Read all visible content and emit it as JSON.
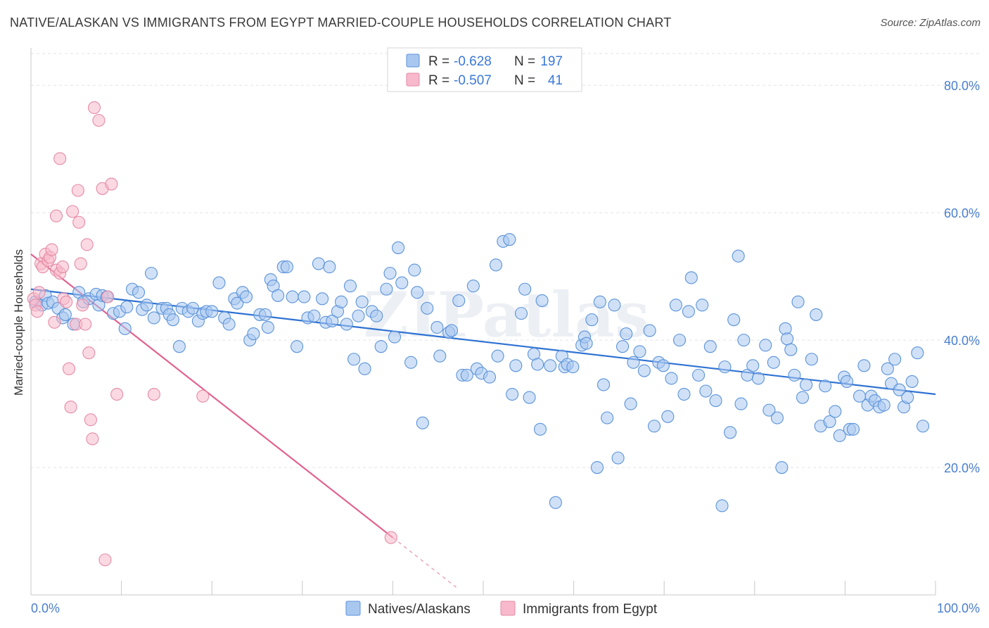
{
  "title": "NATIVE/ALASKAN VS IMMIGRANTS FROM EGYPT MARRIED-COUPLE HOUSEHOLDS CORRELATION CHART",
  "source": "Source: ZipAtlas.com",
  "watermark": "ZIPatlas",
  "legend_top": {
    "rows": [
      {
        "r_label": "R =",
        "r_value": "-0.628",
        "n_label": "N =",
        "n_value": "197",
        "color": "#a9c8f0"
      },
      {
        "r_label": "R =",
        "r_value": "-0.507",
        "n_label": "N =",
        "n_value": "41",
        "color": "#f7b9cb"
      }
    ]
  },
  "legend_bottom": [
    {
      "label": "Natives/Alaskans",
      "color": "#a9c8f0"
    },
    {
      "label": "Immigrants from Egypt",
      "color": "#f7b9cb"
    }
  ],
  "chart_data": {
    "type": "scatter",
    "title": "NATIVE/ALASKAN VS IMMIGRANTS FROM EGYPT MARRIED-COUPLE HOUSEHOLDS CORRELATION CHART",
    "xlabel": "",
    "ylabel": "Married-couple Households",
    "xlim": [
      0,
      100
    ],
    "ylim": [
      0,
      85
    ],
    "x_tick_labels": [
      "0.0%",
      "100.0%"
    ],
    "y_ticks": [
      20,
      40,
      60,
      80
    ],
    "y_tick_labels": [
      "20.0%",
      "40.0%",
      "60.0%",
      "80.0%"
    ],
    "grid": true,
    "colors": {
      "blue_fill": "#a9c8f0",
      "blue_stroke": "#5b93d9",
      "blue_line": "#2f72d2",
      "pink_fill": "#f7b9cb",
      "pink_stroke": "#e58aa6",
      "pink_line": "#e2628f"
    },
    "series": [
      {
        "name": "Natives/Alaskans",
        "trend": {
          "x0": 0,
          "y0": 48.0,
          "x1": 100,
          "y1": 31.5
        },
        "points": [
          [
            0.5,
            46.0
          ],
          [
            1.2,
            45.5
          ],
          [
            1.6,
            47.0
          ],
          [
            1.9,
            45.8
          ],
          [
            2.4,
            46.0
          ],
          [
            3.0,
            45.0
          ],
          [
            3.5,
            43.5
          ],
          [
            3.8,
            44.0
          ],
          [
            4.7,
            42.5
          ],
          [
            5.3,
            47.5
          ],
          [
            5.8,
            46.0
          ],
          [
            6.4,
            46.5
          ],
          [
            7.2,
            47.2
          ],
          [
            7.5,
            45.5
          ],
          [
            7.9,
            47.0
          ],
          [
            8.4,
            46.8
          ],
          [
            9.1,
            44.2
          ],
          [
            9.8,
            44.5
          ],
          [
            10.4,
            41.8
          ],
          [
            10.6,
            45.2
          ],
          [
            11.2,
            48.0
          ],
          [
            11.9,
            47.5
          ],
          [
            12.3,
            44.8
          ],
          [
            12.8,
            45.5
          ],
          [
            13.3,
            50.5
          ],
          [
            13.6,
            43.5
          ],
          [
            14.5,
            45.0
          ],
          [
            15.0,
            45.0
          ],
          [
            15.3,
            44.0
          ],
          [
            15.7,
            43.2
          ],
          [
            16.4,
            39.0
          ],
          [
            16.7,
            45.0
          ],
          [
            17.4,
            44.5
          ],
          [
            17.9,
            45.0
          ],
          [
            18.5,
            43.0
          ],
          [
            19.0,
            44.2
          ],
          [
            19.4,
            44.5
          ],
          [
            20.0,
            44.5
          ],
          [
            20.8,
            49.0
          ],
          [
            21.4,
            43.5
          ],
          [
            21.9,
            42.5
          ],
          [
            22.5,
            46.5
          ],
          [
            22.8,
            45.8
          ],
          [
            23.4,
            47.5
          ],
          [
            23.8,
            46.8
          ],
          [
            24.2,
            40.0
          ],
          [
            24.6,
            41.0
          ],
          [
            25.3,
            44.0
          ],
          [
            25.9,
            44.0
          ],
          [
            26.2,
            42.0
          ],
          [
            26.5,
            49.5
          ],
          [
            26.8,
            48.5
          ],
          [
            27.3,
            47.0
          ],
          [
            27.9,
            51.5
          ],
          [
            28.3,
            51.5
          ],
          [
            28.9,
            46.8
          ],
          [
            29.4,
            39.0
          ],
          [
            30.2,
            46.8
          ],
          [
            30.6,
            43.5
          ],
          [
            31.3,
            43.8
          ],
          [
            31.8,
            52.0
          ],
          [
            32.2,
            46.5
          ],
          [
            32.6,
            42.8
          ],
          [
            33.0,
            51.5
          ],
          [
            33.3,
            43.0
          ],
          [
            33.9,
            44.5
          ],
          [
            34.3,
            46.0
          ],
          [
            34.9,
            42.5
          ],
          [
            35.3,
            48.5
          ],
          [
            35.7,
            37.0
          ],
          [
            36.2,
            43.8
          ],
          [
            36.6,
            46.0
          ],
          [
            36.9,
            35.5
          ],
          [
            37.7,
            44.5
          ],
          [
            38.2,
            43.8
          ],
          [
            38.7,
            39.0
          ],
          [
            39.3,
            48.0
          ],
          [
            39.7,
            50.5
          ],
          [
            40.2,
            40.5
          ],
          [
            40.6,
            54.5
          ],
          [
            41.0,
            49.0
          ],
          [
            42.0,
            36.5
          ],
          [
            42.4,
            51.0
          ],
          [
            42.7,
            47.5
          ],
          [
            43.3,
            27.0
          ],
          [
            43.8,
            45.0
          ],
          [
            44.9,
            42.0
          ],
          [
            45.2,
            37.5
          ],
          [
            46.2,
            41.2
          ],
          [
            46.5,
            41.5
          ],
          [
            47.3,
            46.2
          ],
          [
            47.7,
            34.5
          ],
          [
            48.2,
            34.5
          ],
          [
            48.9,
            48.5
          ],
          [
            49.3,
            35.5
          ],
          [
            49.8,
            34.8
          ],
          [
            50.7,
            34.2
          ],
          [
            51.4,
            51.8
          ],
          [
            51.6,
            37.5
          ],
          [
            52.2,
            55.5
          ],
          [
            52.9,
            55.8
          ],
          [
            53.2,
            31.5
          ],
          [
            53.6,
            36.0
          ],
          [
            54.2,
            44.2
          ],
          [
            54.6,
            48.0
          ],
          [
            55.1,
            31.0
          ],
          [
            55.6,
            37.8
          ],
          [
            56.0,
            36.2
          ],
          [
            56.3,
            26.0
          ],
          [
            56.5,
            46.2
          ],
          [
            57.4,
            36.0
          ],
          [
            58.0,
            14.5
          ],
          [
            58.7,
            37.5
          ],
          [
            59.0,
            35.8
          ],
          [
            59.3,
            36.2
          ],
          [
            59.9,
            35.8
          ],
          [
            60.9,
            39.2
          ],
          [
            61.2,
            40.5
          ],
          [
            61.4,
            39.5
          ],
          [
            62.0,
            43.2
          ],
          [
            62.6,
            20.0
          ],
          [
            62.9,
            46.0
          ],
          [
            63.3,
            33.0
          ],
          [
            63.7,
            27.8
          ],
          [
            64.5,
            45.5
          ],
          [
            64.9,
            21.5
          ],
          [
            65.4,
            39.0
          ],
          [
            65.8,
            41.0
          ],
          [
            66.3,
            30.0
          ],
          [
            66.6,
            36.5
          ],
          [
            67.3,
            38.2
          ],
          [
            67.8,
            35.2
          ],
          [
            68.4,
            41.5
          ],
          [
            68.9,
            26.5
          ],
          [
            69.4,
            36.5
          ],
          [
            69.9,
            36.0
          ],
          [
            70.4,
            28.0
          ],
          [
            70.8,
            34.0
          ],
          [
            71.3,
            45.5
          ],
          [
            71.7,
            40.0
          ],
          [
            72.2,
            31.5
          ],
          [
            72.7,
            44.5
          ],
          [
            73.0,
            49.8
          ],
          [
            73.8,
            34.5
          ],
          [
            74.2,
            45.5
          ],
          [
            74.6,
            32.0
          ],
          [
            75.1,
            39.0
          ],
          [
            75.7,
            30.5
          ],
          [
            76.4,
            14.0
          ],
          [
            76.7,
            35.8
          ],
          [
            77.3,
            25.5
          ],
          [
            77.7,
            43.2
          ],
          [
            78.2,
            53.2
          ],
          [
            78.5,
            30.0
          ],
          [
            78.8,
            40.0
          ],
          [
            79.2,
            34.5
          ],
          [
            79.8,
            36.0
          ],
          [
            80.4,
            34.0
          ],
          [
            81.2,
            39.2
          ],
          [
            81.6,
            29.0
          ],
          [
            82.1,
            36.5
          ],
          [
            82.5,
            27.8
          ],
          [
            83.0,
            20.0
          ],
          [
            83.4,
            41.8
          ],
          [
            83.6,
            40.2
          ],
          [
            84.0,
            38.5
          ],
          [
            84.4,
            34.5
          ],
          [
            84.8,
            46.0
          ],
          [
            85.3,
            31.0
          ],
          [
            85.7,
            33.0
          ],
          [
            86.3,
            37.0
          ],
          [
            86.8,
            44.0
          ],
          [
            87.3,
            26.5
          ],
          [
            87.8,
            32.8
          ],
          [
            88.3,
            27.2
          ],
          [
            88.9,
            28.8
          ],
          [
            89.4,
            25.0
          ],
          [
            89.9,
            34.2
          ],
          [
            90.2,
            33.5
          ],
          [
            90.5,
            26.0
          ],
          [
            90.9,
            26.0
          ],
          [
            91.6,
            31.2
          ],
          [
            92.1,
            36.0
          ],
          [
            92.5,
            29.8
          ],
          [
            92.9,
            31.2
          ],
          [
            93.3,
            30.5
          ],
          [
            93.8,
            29.5
          ],
          [
            94.3,
            29.8
          ],
          [
            94.7,
            35.5
          ],
          [
            95.1,
            33.2
          ],
          [
            95.5,
            37.0
          ],
          [
            96.0,
            32.2
          ],
          [
            96.5,
            29.5
          ],
          [
            96.9,
            31.0
          ],
          [
            97.4,
            33.5
          ],
          [
            98.0,
            38.0
          ],
          [
            98.6,
            26.5
          ]
        ]
      },
      {
        "name": "Immigrants from Egypt",
        "trend": {
          "x0": 0,
          "y0": 53.5,
          "x1": 40,
          "y1": 9.0,
          "dash_to_x": 47.0
        },
        "points": [
          [
            0.3,
            46.5
          ],
          [
            0.5,
            45.5
          ],
          [
            0.7,
            44.5
          ],
          [
            0.9,
            47.5
          ],
          [
            1.1,
            52.0
          ],
          [
            1.3,
            51.5
          ],
          [
            1.6,
            53.5
          ],
          [
            1.9,
            52.5
          ],
          [
            2.1,
            53.0
          ],
          [
            2.3,
            54.2
          ],
          [
            2.6,
            42.8
          ],
          [
            2.8,
            51.0
          ],
          [
            3.2,
            50.5
          ],
          [
            2.8,
            59.5
          ],
          [
            3.2,
            68.5
          ],
          [
            3.5,
            51.5
          ],
          [
            3.6,
            46.5
          ],
          [
            3.9,
            46.0
          ],
          [
            4.2,
            35.5
          ],
          [
            4.4,
            29.5
          ],
          [
            4.6,
            60.2
          ],
          [
            5.0,
            42.5
          ],
          [
            5.2,
            63.5
          ],
          [
            5.3,
            58.5
          ],
          [
            5.5,
            52.0
          ],
          [
            5.7,
            45.5
          ],
          [
            6.0,
            42.5
          ],
          [
            6.2,
            55.0
          ],
          [
            6.4,
            38.0
          ],
          [
            6.6,
            27.5
          ],
          [
            6.8,
            24.5
          ],
          [
            7.0,
            76.5
          ],
          [
            7.5,
            74.5
          ],
          [
            7.9,
            63.8
          ],
          [
            8.2,
            5.5
          ],
          [
            8.5,
            46.8
          ],
          [
            8.9,
            64.5
          ],
          [
            9.5,
            31.5
          ],
          [
            13.6,
            31.5
          ],
          [
            19.0,
            31.2
          ],
          [
            39.8,
            9.0
          ]
        ]
      }
    ]
  }
}
